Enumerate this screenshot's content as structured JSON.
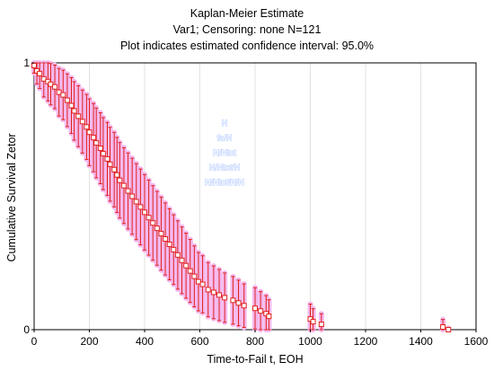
{
  "chart_data": {
    "type": "scatter",
    "title": "Kaplan-Meier Estimate",
    "subtitle": "Var1; Censoring: none N=121",
    "subtitle2": "Plot indicates estimated confidence interval: 95.0%",
    "xlabel": "Time-to-Fail t, EOH",
    "ylabel": "Cumulative Survival Zetor",
    "xlim": [
      0,
      1600
    ],
    "ylim": [
      0,
      1
    ],
    "xticks": [
      "0",
      "200",
      "400",
      "600",
      "800",
      "1000",
      "1200",
      "1400",
      "1600"
    ],
    "yticks": [
      "0",
      "1"
    ],
    "grid": true,
    "colors": {
      "series": "#e0201c",
      "band": "#f4b8ee",
      "grid": "#e2e2e2"
    },
    "points": [
      [
        0,
        0.99
      ],
      [
        10,
        0.97
      ],
      [
        20,
        0.96
      ],
      [
        35,
        0.94
      ],
      [
        50,
        0.93
      ],
      [
        60,
        0.92
      ],
      [
        75,
        0.91
      ],
      [
        90,
        0.89
      ],
      [
        105,
        0.88
      ],
      [
        120,
        0.86
      ],
      [
        135,
        0.84
      ],
      [
        145,
        0.82
      ],
      [
        160,
        0.8
      ],
      [
        175,
        0.78
      ],
      [
        190,
        0.76
      ],
      [
        200,
        0.74
      ],
      [
        215,
        0.72
      ],
      [
        225,
        0.7
      ],
      [
        240,
        0.68
      ],
      [
        250,
        0.66
      ],
      [
        265,
        0.64
      ],
      [
        275,
        0.62
      ],
      [
        290,
        0.6
      ],
      [
        300,
        0.58
      ],
      [
        310,
        0.56
      ],
      [
        325,
        0.54
      ],
      [
        340,
        0.52
      ],
      [
        355,
        0.5
      ],
      [
        370,
        0.48
      ],
      [
        385,
        0.46
      ],
      [
        400,
        0.44
      ],
      [
        415,
        0.42
      ],
      [
        430,
        0.4
      ],
      [
        445,
        0.38
      ],
      [
        460,
        0.36
      ],
      [
        475,
        0.34
      ],
      [
        490,
        0.32
      ],
      [
        505,
        0.3
      ],
      [
        520,
        0.28
      ],
      [
        535,
        0.26
      ],
      [
        550,
        0.24
      ],
      [
        565,
        0.22
      ],
      [
        580,
        0.2
      ],
      [
        595,
        0.18
      ],
      [
        610,
        0.17
      ],
      [
        630,
        0.15
      ],
      [
        650,
        0.14
      ],
      [
        670,
        0.13
      ],
      [
        690,
        0.12
      ],
      [
        720,
        0.11
      ],
      [
        740,
        0.1
      ],
      [
        760,
        0.09
      ],
      [
        800,
        0.08
      ],
      [
        820,
        0.07
      ],
      [
        840,
        0.06
      ],
      [
        850,
        0.05
      ],
      [
        1000,
        0.04
      ],
      [
        1010,
        0.03
      ],
      [
        1040,
        0.02
      ],
      [
        1480,
        0.01
      ],
      [
        1500,
        0.0
      ]
    ]
  },
  "legend_block": {
    "lines": [
      "N",
      "fa/N",
      "N/Ntot",
      "N/Ntot/N",
      "N/Ntot/N/N"
    ]
  }
}
